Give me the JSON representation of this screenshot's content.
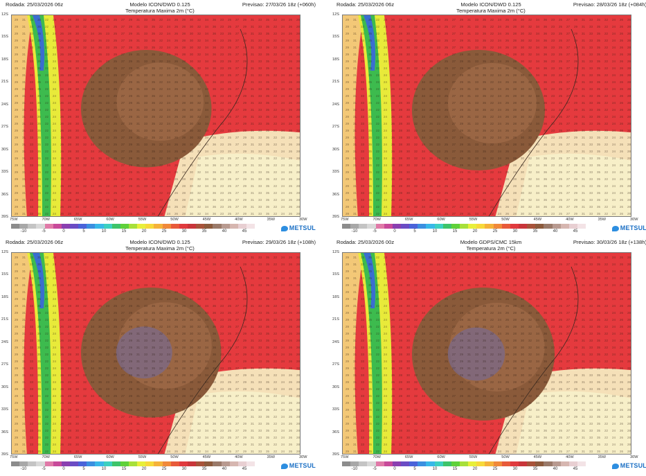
{
  "panels": [
    {
      "rodada": "Rodada: 25/03/2026 06z",
      "model": "Modelo ICON/DWD 0.125",
      "variable": "Temperatura Maxima 2m (°C)",
      "forecast": "Previsao: 27/03/26 18z (+060h)",
      "brown_level": 0.55,
      "purple": false
    },
    {
      "rodada": "Rodada: 25/03/2026 06z",
      "model": "Modelo ICON/DWD 0.125",
      "variable": "Temperatura Maxima 2m (°C)",
      "forecast": "Previsao: 28/03/26 18z (+084h)",
      "brown_level": 0.6,
      "purple": false
    },
    {
      "rodada": "Rodada: 25/03/2026 06z",
      "model": "Modelo ICON/DWD 0.125",
      "variable": "Temperatura Maxima 2m (°C)",
      "forecast": "Previsao: 29/03/26 18z (+108h)",
      "brown_level": 0.75,
      "purple": true
    },
    {
      "rodada": "Rodada: 25/03/2026 00z",
      "model": "Modelo GDPS/CMC 15km",
      "variable": "Temperatura 2m (°C)",
      "forecast": "Previsao: 30/03/26 18z (+138h)",
      "brown_level": 0.8,
      "purple": true
    }
  ],
  "latitudes": [
    "12S",
    "15S",
    "18S",
    "21S",
    "24S",
    "27S",
    "30S",
    "33S",
    "36S",
    "39S"
  ],
  "longitudes": [
    "75W",
    "70W",
    "65W",
    "60W",
    "55W",
    "50W",
    "45W",
    "40W",
    "35W",
    "30W"
  ],
  "legend_ticks": [
    "-10",
    "-5",
    "0",
    "5",
    "10",
    "15",
    "20",
    "25",
    "30",
    "35",
    "40",
    "45"
  ],
  "legend_colors": [
    "#8c8c8c",
    "#a8a8a8",
    "#c4c4c4",
    "#d9d9d9",
    "#e07aa8",
    "#c84a9a",
    "#8a3fb0",
    "#6b4cc4",
    "#4a63d9",
    "#3b8fe0",
    "#38b8e8",
    "#3cd0c0",
    "#3dc46a",
    "#5fd13a",
    "#a7e03a",
    "#e8ef3a",
    "#f7d93a",
    "#f5b23a",
    "#f0893a",
    "#e85a3a",
    "#e03a3e",
    "#c9353a",
    "#a8533a",
    "#8c5a3c",
    "#9a7a6a",
    "#b89a90",
    "#d6b6b0",
    "#e8cfd2",
    "#f3e3e6"
  ],
  "brand": "METSUL",
  "colors": {
    "red": "#e53a3e",
    "brown": "#8a5a3a",
    "pale": "#f5e0b8",
    "purple": "#7a6a8a",
    "andes_green": "#3dbb4e",
    "andes_yellow": "#e8ea3a",
    "andes_blue": "#3a6ed0"
  }
}
